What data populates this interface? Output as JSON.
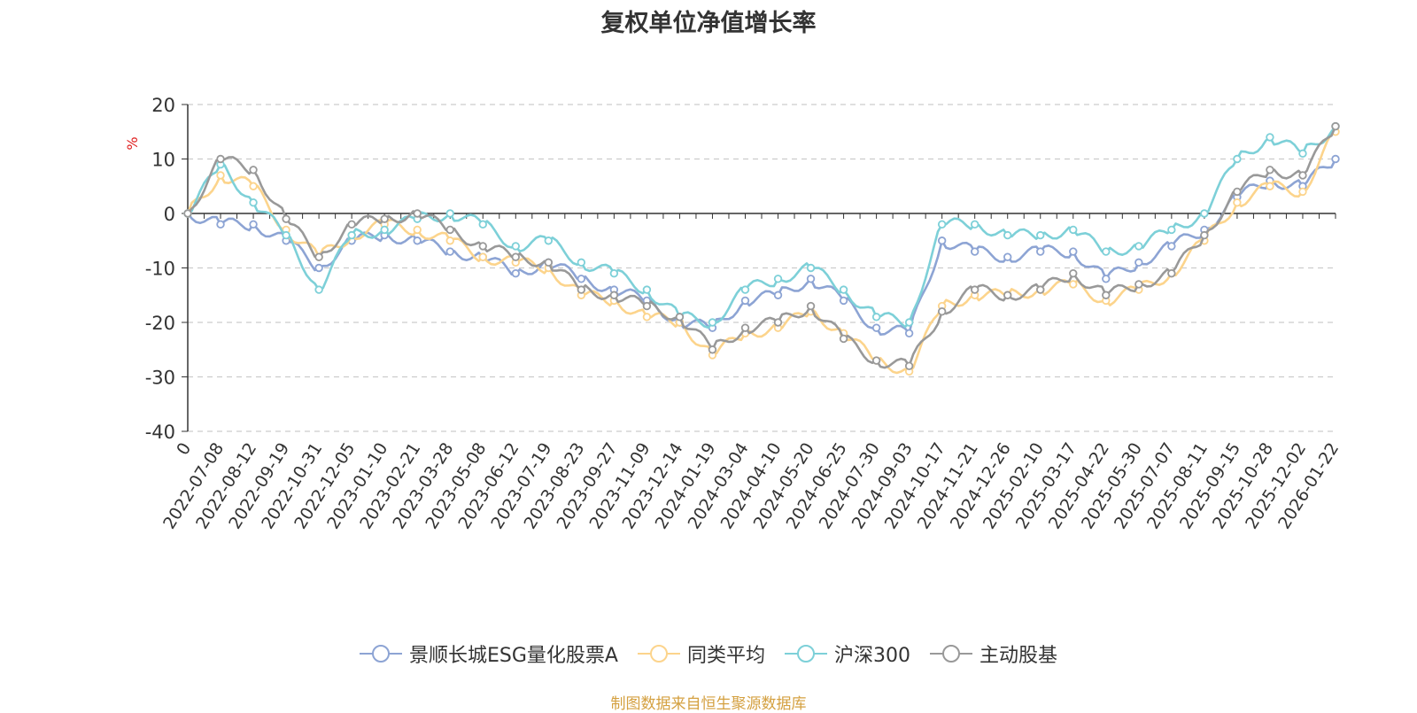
{
  "chart_data": {
    "type": "line",
    "title": "复权单位净值增长率",
    "ylabel": "%",
    "xlabel": "",
    "ylim": [
      -40,
      20
    ],
    "y_ticks": [
      20,
      10,
      0,
      -10,
      -20,
      -30,
      -40
    ],
    "grid": true,
    "legend_position": "bottom",
    "categories": [
      "0",
      "2022-07-08",
      "2022-08-12",
      "2022-09-19",
      "2022-10-31",
      "2022-12-05",
      "2023-01-10",
      "2023-02-21",
      "2023-03-28",
      "2023-05-08",
      "2023-06-12",
      "2023-07-19",
      "2023-08-23",
      "2023-09-27",
      "2023-11-09",
      "2023-12-14",
      "2024-01-19",
      "2024-03-04",
      "2024-04-10",
      "2024-05-20",
      "2024-06-25",
      "2024-07-30",
      "2024-09-03",
      "2024-10-17",
      "2024-11-21",
      "2024-12-26",
      "2025-02-10",
      "2025-03-17",
      "2025-04-22",
      "2025-05-30",
      "2025-07-07",
      "2025-08-11",
      "2025-09-15",
      "2025-10-28",
      "2025-12-02",
      "2026-01-22"
    ],
    "series": [
      {
        "name": "景顺长城ESG量化股票A",
        "color": "#8da4d4",
        "values": [
          0,
          -2,
          -2,
          -5,
          -10,
          -5,
          -4,
          -5,
          -7,
          -8,
          -11,
          -9,
          -12,
          -14,
          -16,
          -20,
          -21,
          -16,
          -15,
          -12,
          -16,
          -21,
          -22,
          -5,
          -7,
          -8,
          -7,
          -7,
          -12,
          -9,
          -6,
          -3,
          3,
          6,
          5,
          10
        ]
      },
      {
        "name": "同类平均",
        "color": "#fcd48c",
        "values": [
          0,
          7,
          5,
          -3,
          -8,
          -4,
          -2,
          -3,
          -5,
          -8,
          -9,
          -10,
          -15,
          -16,
          -19,
          -20,
          -26,
          -22,
          -21,
          -18,
          -22,
          -27,
          -29,
          -17,
          -15,
          -15,
          -14,
          -13,
          -16,
          -14,
          -11,
          -5,
          2,
          5,
          4,
          15
        ]
      },
      {
        "name": "沪深300",
        "color": "#7dd0d8",
        "values": [
          0,
          9,
          2,
          -4,
          -14,
          -4,
          -3,
          -1,
          0,
          -2,
          -6,
          -5,
          -9,
          -11,
          -14,
          -19,
          -20,
          -14,
          -12,
          -10,
          -14,
          -19,
          -20,
          -2,
          -2,
          -4,
          -4,
          -3,
          -7,
          -6,
          -3,
          0,
          10,
          14,
          11,
          16
        ]
      },
      {
        "name": "主动股基",
        "color": "#999999",
        "values": [
          0,
          10,
          8,
          -1,
          -8,
          -2,
          -1,
          0,
          -3,
          -6,
          -8,
          -9,
          -14,
          -15,
          -17,
          -19,
          -25,
          -21,
          -20,
          -17,
          -23,
          -27,
          -28,
          -18,
          -14,
          -15,
          -14,
          -11,
          -15,
          -13,
          -11,
          -4,
          4,
          8,
          7,
          16
        ]
      }
    ],
    "source": "制图数据来自恒生聚源数据库",
    "source_color": "#d4a040"
  }
}
